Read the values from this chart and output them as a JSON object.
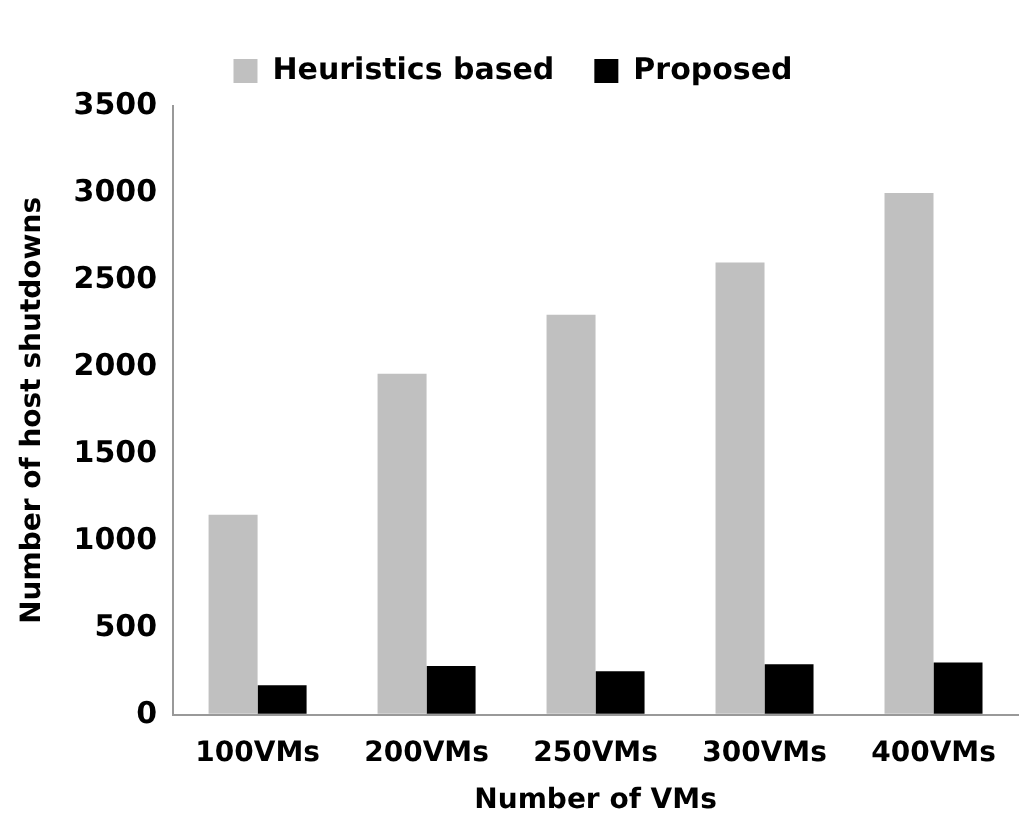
{
  "chart_data": {
    "type": "bar",
    "xlabel": "Number of VMs",
    "ylabel": "Number of host shutdowns",
    "categories": [
      "100VMs",
      "200VMs",
      "250VMs",
      "300VMs",
      "400VMs"
    ],
    "series": [
      {
        "name": "Heuristics based",
        "color": "#c0c0c0",
        "values": [
          1150,
          1960,
          2300,
          2600,
          3000
        ]
      },
      {
        "name": "Proposed",
        "color": "#000000",
        "values": [
          170,
          280,
          250,
          290,
          300
        ]
      }
    ],
    "ylim": [
      0,
      3500
    ],
    "yticks": [
      0,
      500,
      1000,
      1500,
      2000,
      2500,
      3000,
      3500
    ],
    "grid": false,
    "legend": "top"
  }
}
